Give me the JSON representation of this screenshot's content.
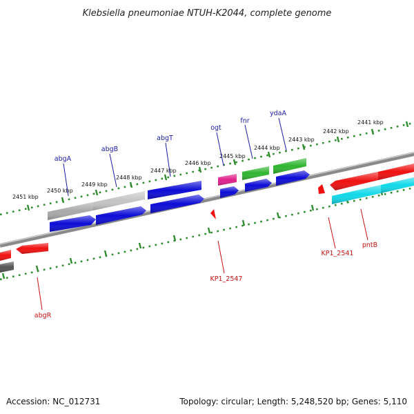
{
  "title": "Klebsiella pneumoniae NTUH-K2044, complete genome",
  "footer": {
    "accession": "Accession: NC_012731",
    "summary": "Topology: circular; Length: 5,248,520 bp; Genes: 5,110"
  },
  "colors": {
    "backbone": "#8a8a8a",
    "scale_ticks": "#2e8b2e",
    "gene_label_top": "#1a1aa0",
    "gene_label_bottom": "#c41010",
    "gene_blue": "#0c0cd6",
    "gene_gray": "#a9a9a9",
    "gene_magenta": "#e0208c",
    "gene_green": "#2fb52f",
    "gene_red": "#f01010",
    "gene_cyan": "#10d8e8",
    "gene_dark": "#555555"
  },
  "scale_labels": [
    "2451 kbp",
    "2450 kbp",
    "2449 kbp",
    "2448 kbp",
    "2447 kbp",
    "2446 kbp",
    "2445 kbp",
    "2444 kbp",
    "2443 kbp",
    "2442 kbp",
    "2441 kbp"
  ],
  "genes_top": [
    "abgA",
    "abgB",
    "abgT",
    "ogt",
    "fnr",
    "ydaA"
  ],
  "genes_bottom": [
    "abgR",
    "KP1_2547",
    "KP1_2541",
    "pntB"
  ]
}
